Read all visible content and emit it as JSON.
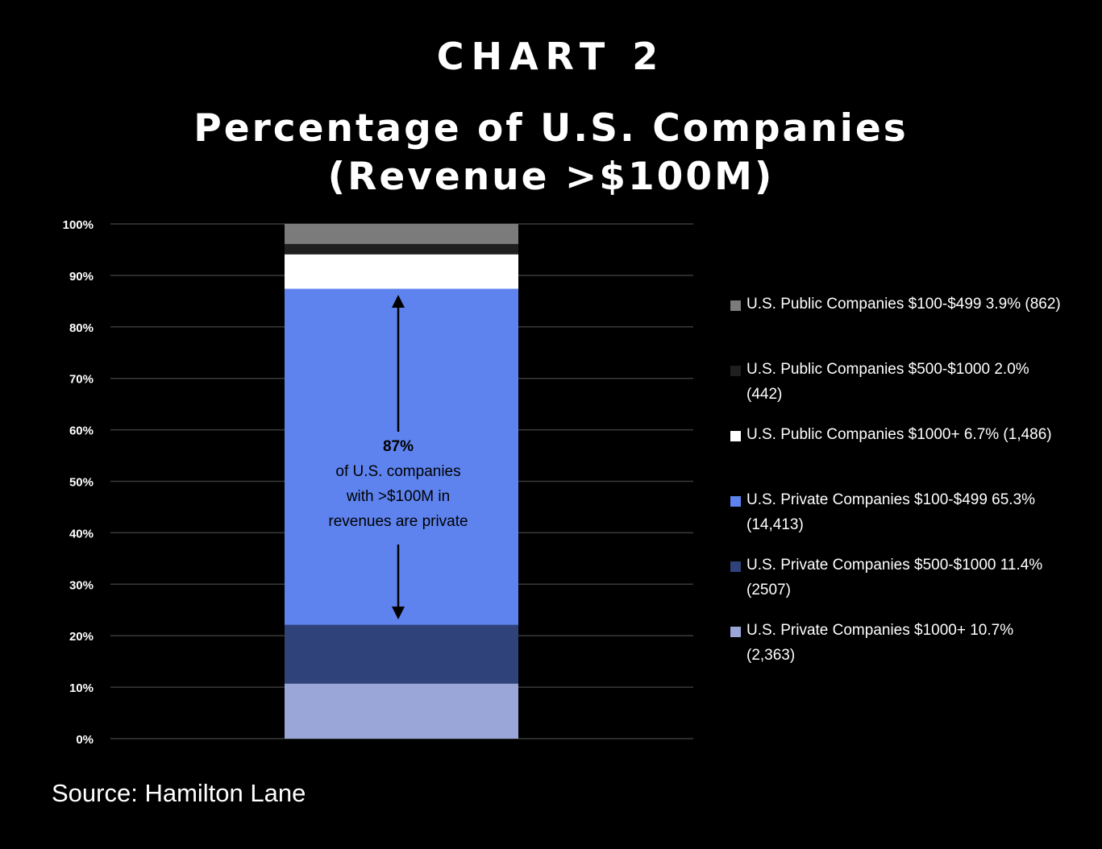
{
  "header": {
    "chart_label": "CHART 2",
    "title_line1": "Percentage of U.S. Companies",
    "title_line2": "(Revenue >$100M)"
  },
  "chart_data": {
    "type": "bar",
    "stacked": true,
    "title": "Percentage of U.S. Companies (Revenue >$100M)",
    "xlabel": "",
    "ylabel": "",
    "ylim": [
      0,
      100
    ],
    "yticks": [
      "0%",
      "10%",
      "20%",
      "30%",
      "40%",
      "50%",
      "60%",
      "70%",
      "80%",
      "90%",
      "100%"
    ],
    "grid": true,
    "legend_position": "right",
    "categories": [
      ""
    ],
    "series": [
      {
        "name": "U.S. Private Companies $1000+ 10.7% (2,363)",
        "key": "priv_1000",
        "values": [
          10.7
        ],
        "color": "#9aa6d8"
      },
      {
        "name": "U.S. Private Companies $500-$1000 11.4% (2507)",
        "key": "priv_500",
        "values": [
          11.4
        ],
        "color": "#2f427a"
      },
      {
        "name": "U.S. Private Companies $100-$499 65.3% (14,413)",
        "key": "priv_100",
        "values": [
          65.3
        ],
        "color": "#5e83ef"
      },
      {
        "name": "U.S. Public Companies $1000+ 6.7% (1,486)",
        "key": "pub_1000",
        "values": [
          6.7
        ],
        "color": "#ffffff"
      },
      {
        "name": "U.S. Public Companies $500-$1000 2.0% (442)",
        "key": "pub_500",
        "values": [
          2.0
        ],
        "color": "#1f1f1f"
      },
      {
        "name": "U.S. Public Companies $100-$499 3.9% (862)",
        "key": "pub_100",
        "values": [
          3.9
        ],
        "color": "#7b7b7b"
      }
    ],
    "annotation": {
      "value": "87%",
      "line1": "of U.S. companies",
      "line2": "with >$100M in",
      "line3": "revenues are private"
    }
  },
  "legend": {
    "items": [
      {
        "label": "U.S. Public Companies $100-$499 3.9% (862)",
        "color": "#7b7b7b"
      },
      {
        "label": "U.S. Public Companies $500-$1000 2.0% (442)",
        "color": "#1f1f1f"
      },
      {
        "label": "U.S. Public Companies $1000+ 6.7% (1,486)",
        "color": "#ffffff"
      },
      {
        "label": "U.S. Private Companies $100-$499 65.3% (14,413)",
        "color": "#5e83ef"
      },
      {
        "label": "U.S. Private Companies $500-$1000 11.4% (2507)",
        "color": "#2f427a"
      },
      {
        "label": "U.S. Private Companies $1000+ 10.7% (2,363)",
        "color": "#9aa6d8"
      }
    ]
  },
  "source": "Source: Hamilton Lane"
}
